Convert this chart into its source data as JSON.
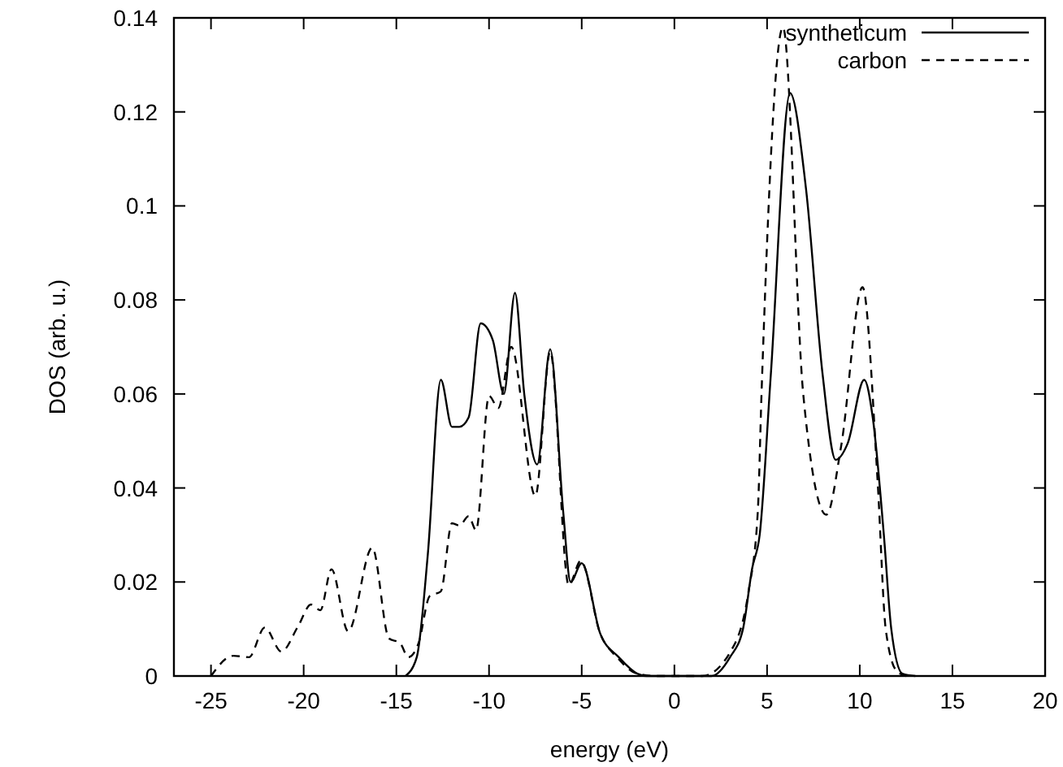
{
  "chart_data": {
    "type": "line",
    "xlabel": "energy (eV)",
    "ylabel": "DOS (arb. u.)",
    "xlim": [
      -27,
      20
    ],
    "ylim": [
      0,
      0.14
    ],
    "xticks": [
      -25,
      -20,
      -15,
      -10,
      -5,
      0,
      5,
      10,
      15,
      20
    ],
    "yticks": [
      0,
      0.02,
      0.04,
      0.06,
      0.08,
      0.1,
      0.12,
      0.14
    ],
    "grid": false,
    "legend": "top right",
    "marker": "none",
    "series": [
      {
        "name": "syntheticum",
        "color": "#000000",
        "line_style": "solid",
        "x": [
          -14.5,
          -13.9,
          -13.3,
          -12.6,
          -12.0,
          -11.6,
          -11.1,
          -10.45,
          -9.8,
          -9.2,
          -8.6,
          -8.1,
          -7.4,
          -6.7,
          -6.0,
          -5.6,
          -5.0,
          -4.0,
          -3.0,
          -2.0,
          -1.5,
          1.5,
          2.0,
          3.0,
          3.7,
          4.2,
          4.6,
          5.2,
          6.24,
          7.09,
          8.0,
          8.7,
          9.35,
          10.24,
          10.7,
          11.3,
          11.7,
          12.3,
          13.0
        ],
        "values": [
          0,
          0.004,
          0.026,
          0.063,
          0.053,
          0.053,
          0.055,
          0.075,
          0.0715,
          0.06,
          0.0815,
          0.06,
          0.045,
          0.0695,
          0.035,
          0.02,
          0.024,
          0.009,
          0.004,
          0.0005,
          0,
          0,
          0,
          0.004,
          0.01,
          0.023,
          0.03,
          0.064,
          0.124,
          0.104,
          0.064,
          0.046,
          0.0495,
          0.063,
          0.055,
          0.03,
          0.01,
          0.0005,
          0
        ]
      },
      {
        "name": "carbon",
        "color": "#000000",
        "line_style": "dashed",
        "x": [
          -25,
          -23.8,
          -22.95,
          -22.1,
          -21.2,
          -20.3,
          -19.6,
          -19.1,
          -18.5,
          -17.6,
          -16.3,
          -15.4,
          -14.8,
          -14.35,
          -13.8,
          -13.2,
          -12.6,
          -12.0,
          -11.6,
          -11.1,
          -10.7,
          -10.0,
          -9.5,
          -8.8,
          -7.5,
          -6.7,
          -5.7,
          -5.05,
          -4.0,
          -3.1,
          -2.0,
          -1.0,
          1.5,
          3.0,
          4.0,
          4.5,
          4.7,
          5.86,
          6.95,
          8.2,
          9.0,
          10.15,
          10.97,
          11.4,
          12.0,
          12.5
        ],
        "values": [
          0,
          0.0043,
          0.004,
          0.0103,
          0.0052,
          0.0106,
          0.0152,
          0.014,
          0.0227,
          0.0095,
          0.0273,
          0.008,
          0.007,
          0.004,
          0.007,
          0.017,
          0.018,
          0.0325,
          0.032,
          0.034,
          0.031,
          0.0596,
          0.057,
          0.07,
          0.0383,
          0.069,
          0.0193,
          0.0245,
          0.009,
          0.004,
          0.0005,
          0,
          0,
          0.005,
          0.018,
          0.035,
          0.06,
          0.138,
          0.06,
          0.0343,
          0.049,
          0.0827,
          0.041,
          0.01,
          0.001,
          0
        ]
      }
    ]
  }
}
